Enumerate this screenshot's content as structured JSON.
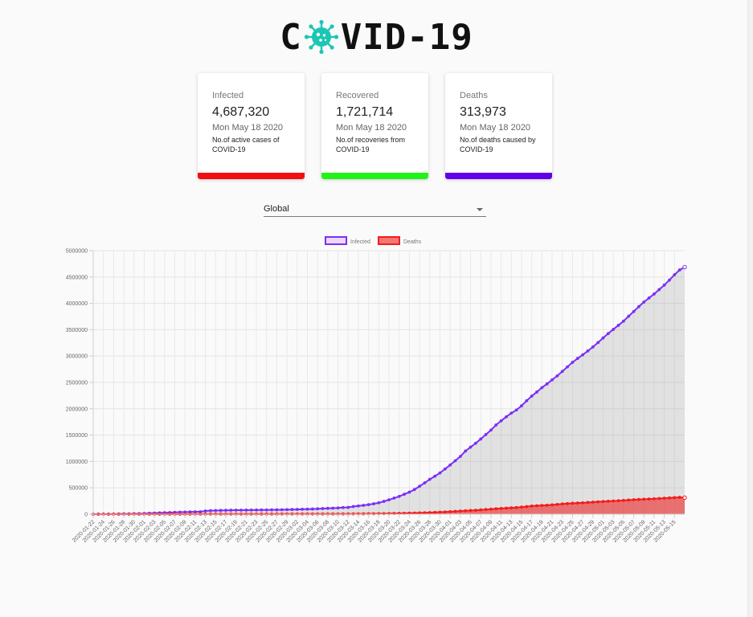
{
  "header": {
    "title_left": "C",
    "title_right": "VID-19",
    "logo_icon": "virus-icon"
  },
  "cards": [
    {
      "title": "Infected",
      "count": "4,687,320",
      "date": "Mon May 18 2020",
      "description": "No.of active cases of COVID-19",
      "color": "#f20f0f"
    },
    {
      "title": "Recovered",
      "count": "1,721,714",
      "date": "Mon May 18 2020",
      "description": "No.of recoveries from COVID-19",
      "color": "#23f21a"
    },
    {
      "title": "Deaths",
      "count": "313,973",
      "date": "Mon May 18 2020",
      "description": "No.of deaths caused by COVID-19",
      "color": "#6200ea"
    }
  ],
  "country_select": {
    "value": "Global"
  },
  "chart_data": {
    "type": "line",
    "legend": [
      {
        "name": "Infected",
        "color": "#7b2ff7",
        "fill": "#ead8fb"
      },
      {
        "name": "Deaths",
        "color": "#f41c1c",
        "fill": "#f47777"
      }
    ],
    "legend_position": "top-center",
    "grid": true,
    "y_ticks": [
      "0",
      "500000",
      "1000000",
      "1500000",
      "2000000",
      "2500000",
      "3000000",
      "3500000",
      "4000000",
      "4500000",
      "5000000"
    ],
    "ylim": [
      0,
      5000000
    ],
    "x_start": "2020-01-22",
    "x_end": "2020-05-17",
    "x_tick_labels": [
      "2020-01-22",
      "2020-01-24",
      "2020-01-26",
      "2020-01-28",
      "2020-01-30",
      "2020-02-01",
      "2020-02-03",
      "2020-02-05",
      "2020-02-07",
      "2020-02-09",
      "2020-02-11",
      "2020-02-13",
      "2020-02-15",
      "2020-02-17",
      "2020-02-19",
      "2020-02-21",
      "2020-02-23",
      "2020-02-25",
      "2020-02-27",
      "2020-02-29",
      "2020-03-02",
      "2020-03-04",
      "2020-03-06",
      "2020-03-08",
      "2020-03-10",
      "2020-03-12",
      "2020-03-14",
      "2020-03-16",
      "2020-03-18",
      "2020-03-20",
      "2020-03-22",
      "2020-03-24",
      "2020-03-26",
      "2020-03-28",
      "2020-03-30",
      "2020-04-01",
      "2020-04-03",
      "2020-04-05",
      "2020-04-07",
      "2020-04-09",
      "2020-04-11",
      "2020-04-13",
      "2020-04-15",
      "2020-04-17",
      "2020-04-19",
      "2020-04-21",
      "2020-04-23",
      "2020-04-25",
      "2020-04-27",
      "2020-04-29",
      "2020-05-01",
      "2020-05-03",
      "2020-05-05",
      "2020-05-07",
      "2020-05-09",
      "2020-05-11",
      "2020-05-13",
      "2020-05-15"
    ],
    "series": [
      {
        "name": "Infected",
        "values": [
          555,
          654,
          941,
          1434,
          2118,
          2927,
          5578,
          6166,
          8234,
          9927,
          12038,
          16787,
          19881,
          23892,
          27635,
          30794,
          34391,
          37120,
          40150,
          42762,
          44802,
          45221,
          60368,
          66885,
          69030,
          71224,
          73258,
          75136,
          75639,
          76197,
          76819,
          78572,
          78958,
          79561,
          80406,
          81388,
          82746,
          84112,
          86011,
          88369,
          90306,
          92840,
          95120,
          97886,
          101801,
          105847,
          109821,
          113590,
          118620,
          125875,
          128352,
          145205,
          156101,
          167454,
          181574,
          197102,
          214821,
          242570,
          272208,
          304507,
          336953,
          378235,
          418045,
          467653,
          529591,
          593291,
          660706,
          720117,
          782365,
          857487,
          932605,
          1013157,
          1095917,
          1197405,
          1272115,
          1345101,
          1426096,
          1511104,
          1595350,
          1691719,
          1771514,
          1846679,
          1917320,
          1976191,
          2056054,
          2152437,
          2240191,
          2317759,
          2401378,
          2472259,
          2549123,
          2624098,
          2708885,
          2795731,
          2881140,
          2955033,
          3023722,
          3097229,
          3172287,
          3256846,
          3343777,
          3427343,
          3506729,
          3583055,
          3662691,
          3755341,
          3845718,
          3938064,
          4024009,
          4101699,
          4177502,
          4261747,
          4347015,
          4442163,
          4542347,
          4634068,
          4687320
        ]
      },
      {
        "name": "Deaths",
        "values": [
          17,
          18,
          26,
          42,
          56,
          82,
          131,
          133,
          171,
          213,
          259,
          362,
          426,
          492,
          564,
          634,
          719,
          806,
          906,
          1013,
          1113,
          1118,
          1371,
          1523,
          1666,
          1770,
          1868,
          2007,
          2122,
          2247,
          2251,
          2458,
          2469,
          2629,
          2708,
          2770,
          2814,
          2872,
          2941,
          2996,
          3085,
          3160,
          3254,
          3348,
          3460,
          3558,
          3803,
          3996,
          4262,
          4615,
          4720,
          5404,
          5819,
          6440,
          7126,
          7905,
          8733,
          9867,
          11299,
          12973,
          14651,
          16505,
          18625,
          21181,
          23970,
          27198,
          30652,
          33925,
          37582,
          42107,
          46809,
          52983,
          58787,
          64606,
          69374,
          74565,
          81865,
          88338,
          95455,
          102525,
          108503,
          114091,
          119482,
          125983,
          134177,
          143800,
          153822,
          159510,
          165044,
          169986,
          176583,
          184681,
          193871,
          200889,
          206601,
          211276,
          215782,
          221871,
          228356,
          234755,
          239859,
          245066,
          249949,
          254719,
          261019,
          267475,
          273500,
          278981,
          283131,
          287129,
          291669,
          297198,
          302382,
          307996,
          313973,
          319000,
          313973
        ]
      }
    ]
  }
}
